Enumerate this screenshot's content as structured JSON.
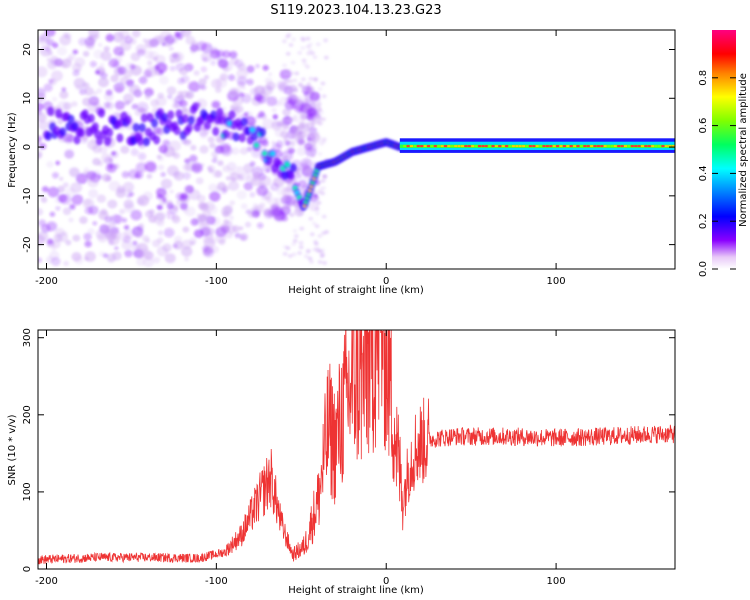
{
  "title": "S119.2023.104.13.23.G23",
  "chart_data": [
    {
      "type": "heatmap",
      "xlabel": "Height of straight line (km)",
      "ylabel": "Frequency (Hz)",
      "xlim": [
        -205,
        170
      ],
      "ylim": [
        -25,
        24
      ],
      "xticks": [
        "-200",
        "-100",
        "0",
        "100"
      ],
      "xtick_values": [
        -200,
        -100,
        0,
        100
      ],
      "yticks": [
        "-20",
        "-10",
        "0",
        "10",
        "20"
      ],
      "ytick_values": [
        -20,
        -10,
        0,
        10,
        20
      ],
      "colorbar": {
        "label": "Normalized spectral amplitude",
        "range": [
          0,
          1
        ],
        "ticks": [
          "0.0",
          "0.2",
          "0.4",
          "0.6",
          "0.8"
        ],
        "tick_values": [
          0.0,
          0.2,
          0.4,
          0.6,
          0.8
        ],
        "colormap": "rainbow"
      },
      "ridge": {
        "x": [
          -200,
          -170,
          -140,
          -110,
          -90,
          -70,
          -55,
          -48,
          -40,
          -30,
          -20,
          -10,
          0,
          8,
          20,
          60,
          100,
          140,
          170
        ],
        "y": [
          5,
          4,
          4,
          6,
          4,
          0,
          -5,
          -12,
          -4,
          -3,
          -1,
          0,
          1,
          0,
          0,
          0,
          0,
          0.5,
          0.5
        ]
      }
    },
    {
      "type": "line",
      "xlabel": "Height of straight line (km)",
      "ylabel": "SNR (10 * v/v)",
      "xlim": [
        -205,
        170
      ],
      "ylim": [
        0,
        310
      ],
      "xticks": [
        "-200",
        "-100",
        "0",
        "100"
      ],
      "xtick_values": [
        -200,
        -100,
        0,
        100
      ],
      "yticks": [
        "0",
        "100",
        "200",
        "300"
      ],
      "ytick_values": [
        0,
        100,
        200,
        300
      ],
      "color": "#ee3333",
      "envelope": {
        "x": [
          -205,
          -170,
          -140,
          -110,
          -95,
          -85,
          -75,
          -68,
          -62,
          -55,
          -48,
          -40,
          -34,
          -30,
          -26,
          -22,
          -18,
          -14,
          -10,
          -6,
          -2,
          2,
          6,
          10,
          14,
          18,
          24,
          40,
          70,
          100,
          130,
          160,
          170
        ],
        "y": [
          12,
          15,
          15,
          14,
          22,
          45,
          90,
          120,
          60,
          18,
          30,
          90,
          185,
          160,
          200,
          230,
          250,
          240,
          270,
          300,
          310,
          250,
          160,
          90,
          140,
          160,
          168,
          172,
          172,
          170,
          172,
          175,
          175
        ]
      }
    }
  ]
}
